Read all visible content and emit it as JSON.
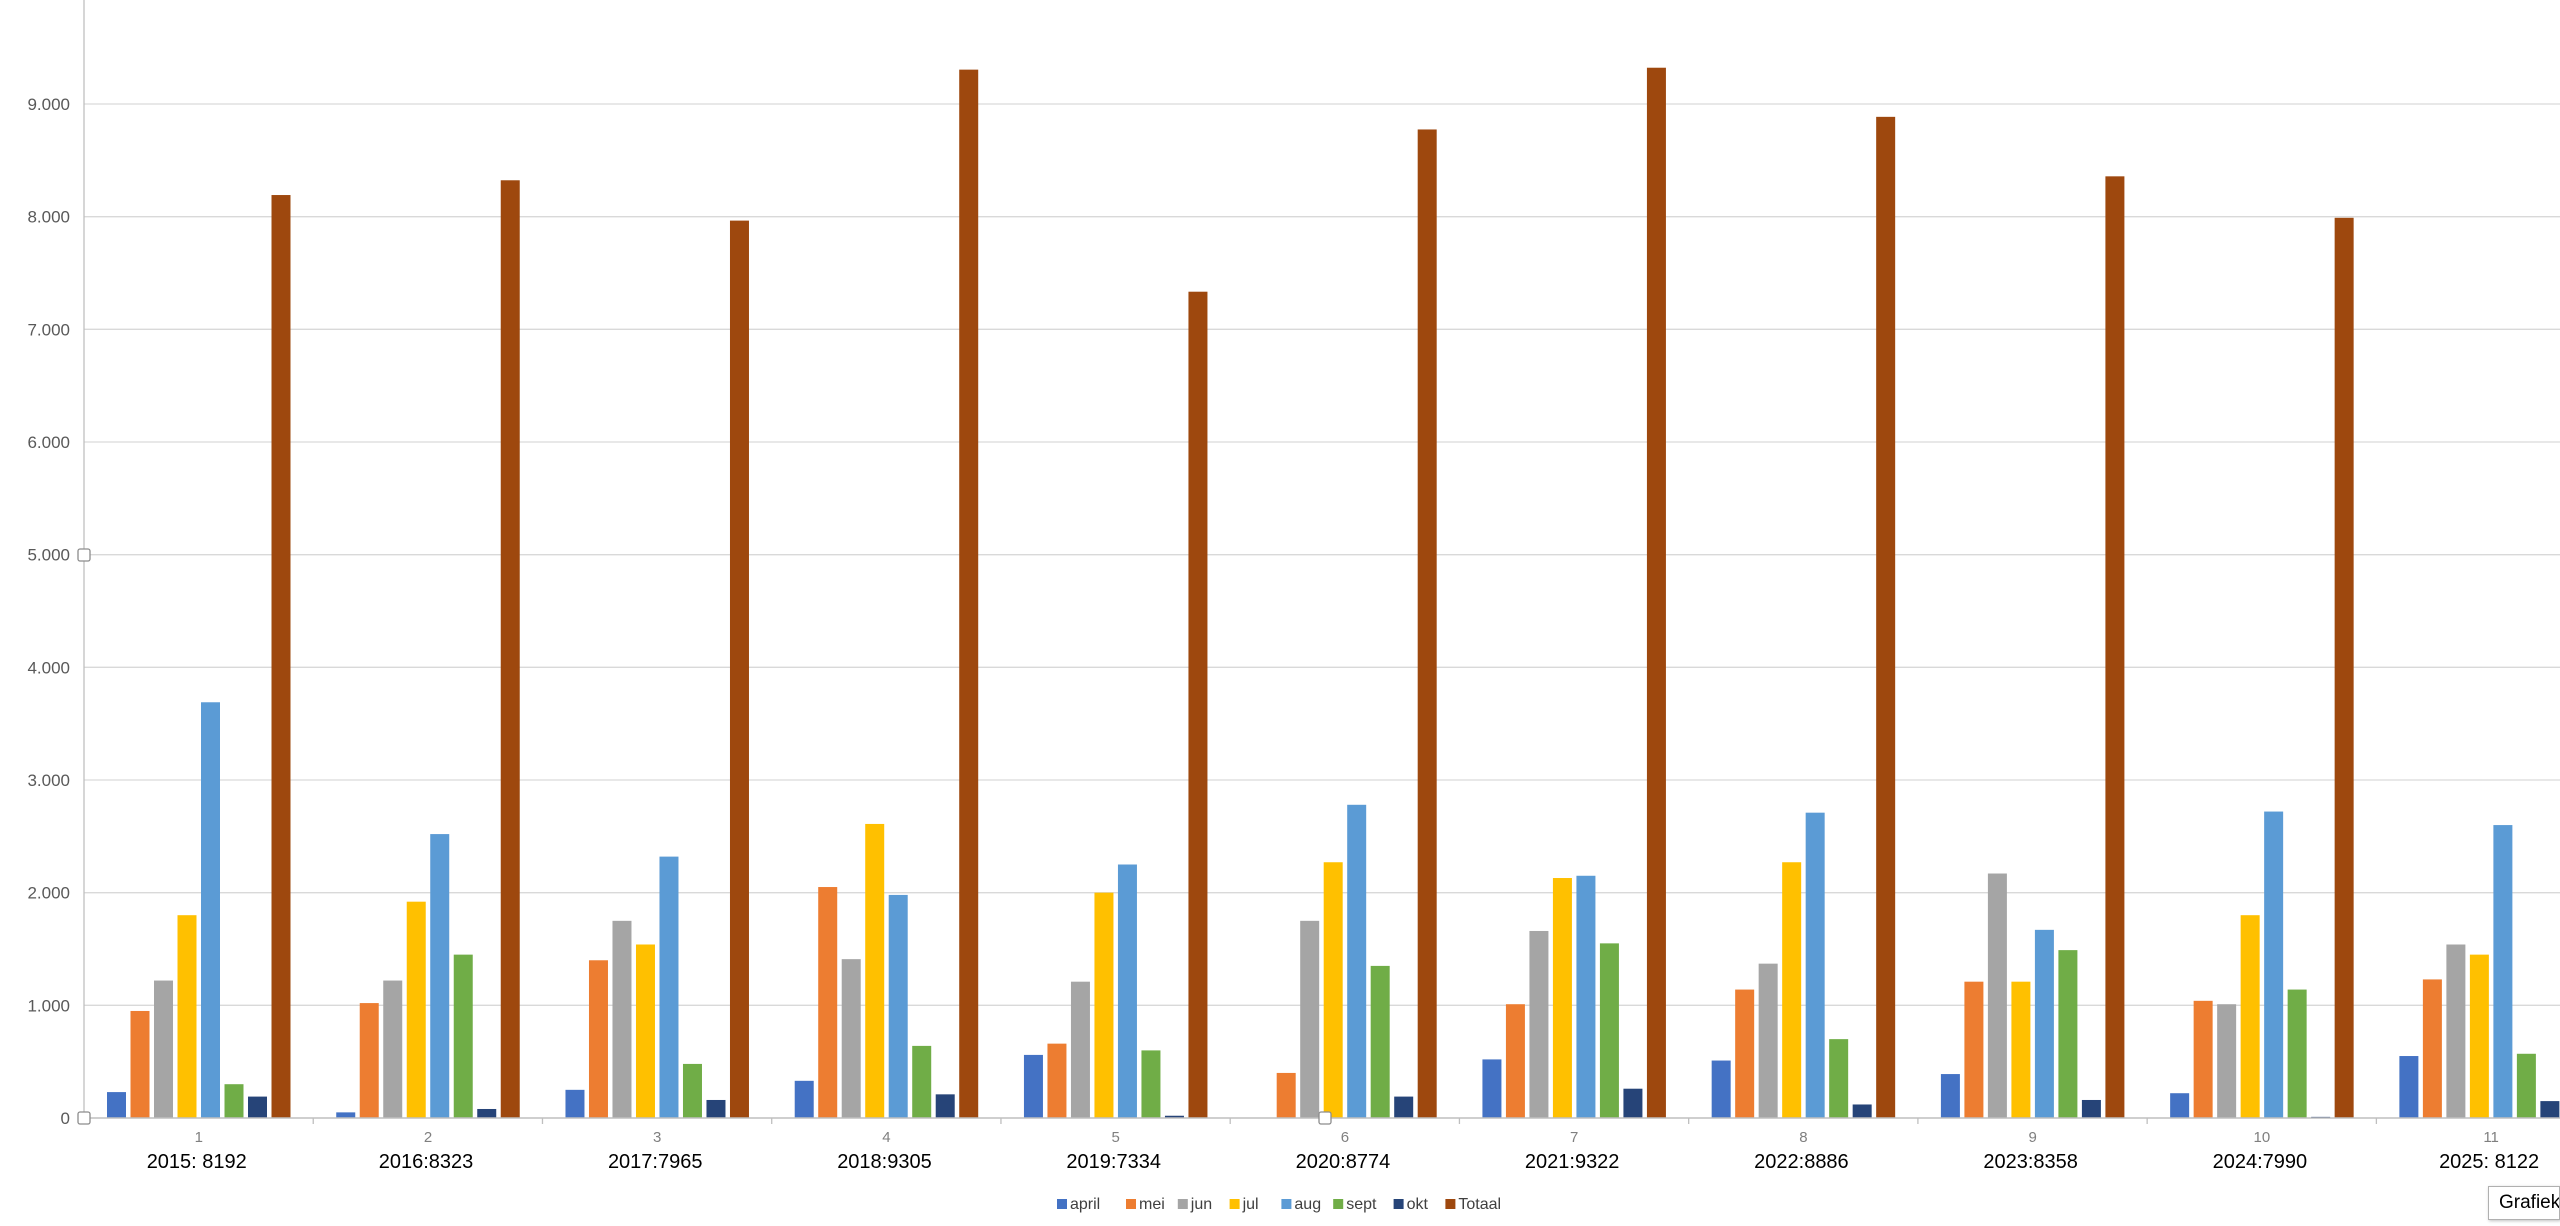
{
  "chart_data": {
    "type": "bar",
    "categories": [
      "1",
      "2",
      "3",
      "4",
      "5",
      "6",
      "7",
      "8",
      "9",
      "10",
      "11"
    ],
    "category_labels": [
      "2015: 8192",
      "2016:8323",
      "2017:7965",
      "2018:9305",
      "2019:7334",
      "2020:8774",
      "2021:9322",
      "2022:8886",
      "2023:8358",
      "2024:7990",
      "2025: 8122"
    ],
    "ylim": [
      0,
      10000
    ],
    "yticks": [
      0,
      1000,
      2000,
      3000,
      4000,
      5000,
      6000,
      7000,
      8000,
      9000
    ],
    "ytick_labels": [
      "0",
      "1.000",
      "2.000",
      "3.000",
      "4.000",
      "5.000",
      "6.000",
      "7.000",
      "8.000",
      "9.000"
    ],
    "grid": true,
    "legend_position": "bottom",
    "series": [
      {
        "name": "april",
        "color": "#4472C4",
        "values": [
          230,
          50,
          250,
          330,
          560,
          0,
          520,
          510,
          390,
          220,
          550
        ]
      },
      {
        "name": "mei",
        "color": "#ED7D31",
        "values": [
          950,
          1020,
          1400,
          2050,
          660,
          400,
          1010,
          1140,
          1210,
          1040,
          1230
        ]
      },
      {
        "name": "jun",
        "color": "#A5A5A5",
        "values": [
          1220,
          1220,
          1750,
          1410,
          1210,
          1750,
          1660,
          1370,
          2170,
          1010,
          1540
        ]
      },
      {
        "name": "jul",
        "color": "#FFC000",
        "values": [
          1800,
          1920,
          1540,
          2610,
          2000,
          2270,
          2130,
          2270,
          1210,
          1800,
          1450
        ]
      },
      {
        "name": "aug",
        "color": "#5B9BD5",
        "values": [
          3690,
          2520,
          2320,
          1980,
          2250,
          2780,
          2150,
          2710,
          1670,
          2720,
          2600
        ]
      },
      {
        "name": "sept",
        "color": "#70AD47",
        "values": [
          300,
          1450,
          480,
          640,
          600,
          1350,
          1550,
          700,
          1490,
          1140,
          570
        ]
      },
      {
        "name": "okt",
        "color": "#264478",
        "values": [
          190,
          80,
          160,
          210,
          20,
          190,
          260,
          120,
          160,
          10,
          150
        ]
      },
      {
        "name": "Totaal",
        "color": "#9E480E",
        "values": [
          8192,
          8323,
          7965,
          9305,
          7334,
          8774,
          9322,
          8886,
          8358,
          7990,
          8122
        ]
      }
    ]
  },
  "tooltip": {
    "text": "Grafiekg"
  }
}
